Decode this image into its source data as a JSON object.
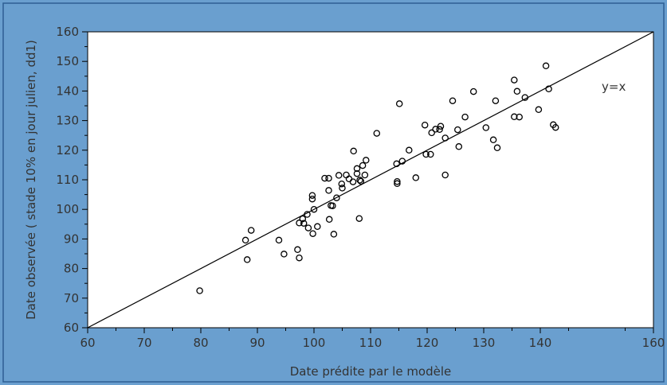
{
  "chart_data": {
    "type": "scatter",
    "title": "",
    "xlabel": "Date prédite par le modèle",
    "ylabel": "Date observée ( stade 10% en jour julien, dd1)",
    "xlim": [
      60,
      160
    ],
    "ylim": [
      60,
      160
    ],
    "x_ticks": [
      "60",
      "70",
      "80",
      "90",
      "100",
      "110",
      "120",
      "130",
      "140",
      "160"
    ],
    "y_ticks": [
      "60",
      "70",
      "80",
      "90",
      "100",
      "110",
      "120",
      "130",
      "140",
      "150",
      "160"
    ],
    "grid": false,
    "reference_line": {
      "label": "y=x",
      "from": [
        60,
        60
      ],
      "to": [
        160,
        160
      ]
    },
    "colors": {
      "background": "#6a9fcf",
      "plot": "#ffffff",
      "marker": "#000000",
      "text": "#333333"
    },
    "points": [
      [
        79.8,
        72.5
      ],
      [
        87.9,
        89.6
      ],
      [
        88.2,
        83
      ],
      [
        88.9,
        92.9
      ],
      [
        93.8,
        89.6
      ],
      [
        94.7,
        84.9
      ],
      [
        97.1,
        86.4
      ],
      [
        97.4,
        83.6
      ],
      [
        97.4,
        95.4
      ],
      [
        98,
        96.8
      ],
      [
        98.2,
        95.3
      ],
      [
        98.8,
        98.3
      ],
      [
        99,
        93.7
      ],
      [
        99.7,
        104.7
      ],
      [
        99.7,
        103.5
      ],
      [
        99.8,
        91.8
      ],
      [
        100,
        100
      ],
      [
        100.6,
        94.2
      ],
      [
        101.9,
        110.5
      ],
      [
        102.6,
        110.5
      ],
      [
        102.6,
        106.4
      ],
      [
        102.7,
        96.6
      ],
      [
        103,
        101.3
      ],
      [
        103.3,
        101.2
      ],
      [
        103.5,
        91.6
      ],
      [
        104,
        103.9
      ],
      [
        104.4,
        111.5
      ],
      [
        104.9,
        108.6
      ],
      [
        105,
        107.2
      ],
      [
        105.7,
        111.6
      ],
      [
        106.2,
        110.3
      ],
      [
        106.9,
        109.3
      ],
      [
        107,
        119.7
      ],
      [
        107.6,
        112.1
      ],
      [
        107.6,
        113.8
      ],
      [
        108,
        96.9
      ],
      [
        108.1,
        109.9
      ],
      [
        108.3,
        109.5
      ],
      [
        108.6,
        114.8
      ],
      [
        109,
        111.6
      ],
      [
        109.2,
        116.6
      ],
      [
        111.1,
        125.7
      ],
      [
        114.6,
        115.4
      ],
      [
        114.7,
        108.7
      ],
      [
        114.7,
        109.4
      ],
      [
        115.1,
        135.7
      ],
      [
        115.6,
        116.3
      ],
      [
        116.8,
        120
      ],
      [
        118,
        110.7
      ],
      [
        119.6,
        128.5
      ],
      [
        119.8,
        118.6
      ],
      [
        120.6,
        118.6
      ],
      [
        120.8,
        125.9
      ],
      [
        121.5,
        127.1
      ],
      [
        122.2,
        127
      ],
      [
        122.4,
        128.1
      ],
      [
        123.2,
        124.1
      ],
      [
        123.2,
        111.6
      ],
      [
        124.5,
        136.7
      ],
      [
        125.4,
        126.9
      ],
      [
        125.6,
        121.2
      ],
      [
        126.7,
        131.2
      ],
      [
        128.2,
        139.8
      ],
      [
        130.4,
        127.6
      ],
      [
        131.7,
        123.5
      ],
      [
        132.1,
        136.7
      ],
      [
        132.4,
        120.8
      ],
      [
        135.4,
        143.7
      ],
      [
        135.4,
        131.3
      ],
      [
        135.9,
        139.9
      ],
      [
        136.3,
        131.2
      ],
      [
        137.3,
        137.8
      ],
      [
        139.7,
        133.7
      ],
      [
        141,
        148.5
      ],
      [
        141.5,
        140.7
      ],
      [
        142.3,
        128.6
      ],
      [
        142.7,
        127.7
      ]
    ]
  }
}
